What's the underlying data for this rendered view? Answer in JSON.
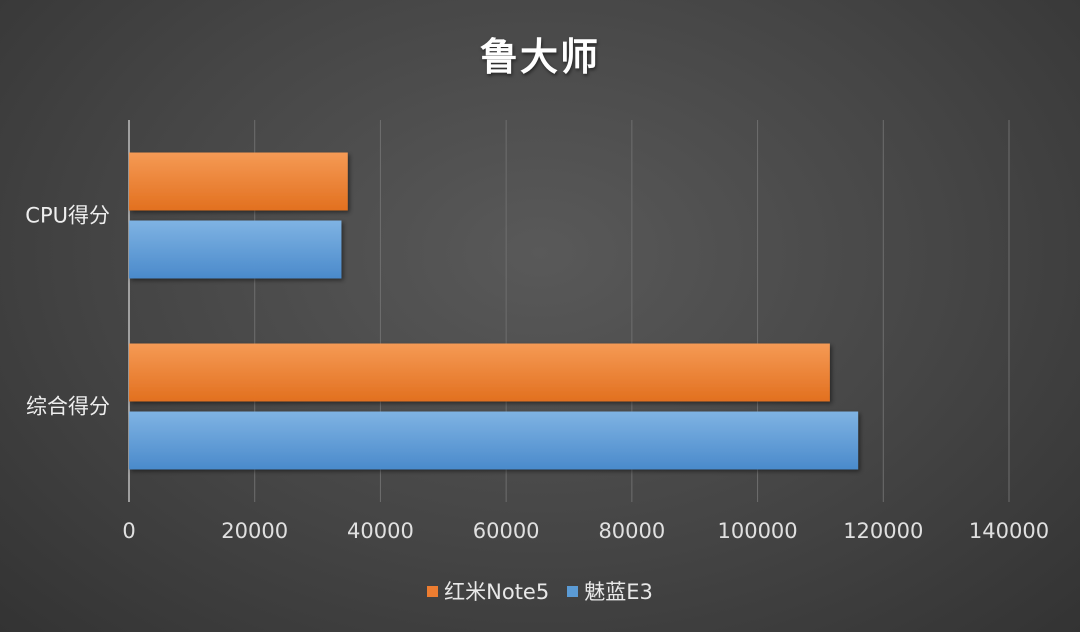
{
  "chart_data": {
    "type": "bar",
    "orientation": "horizontal",
    "title": "鲁大师",
    "categories": [
      "CPU得分",
      "综合得分"
    ],
    "series": [
      {
        "name": "红米Note5",
        "values": [
          34800,
          111500
        ],
        "color": "#ED7D31"
      },
      {
        "name": "魅蓝E3",
        "values": [
          33800,
          116000
        ],
        "color": "#5B9BD5"
      }
    ],
    "xlim": [
      0,
      140000
    ],
    "x_ticks": [
      "0",
      "20000",
      "40000",
      "60000",
      "80000",
      "100000",
      "120000",
      "140000"
    ],
    "grid": true,
    "legend_position": "bottom"
  }
}
